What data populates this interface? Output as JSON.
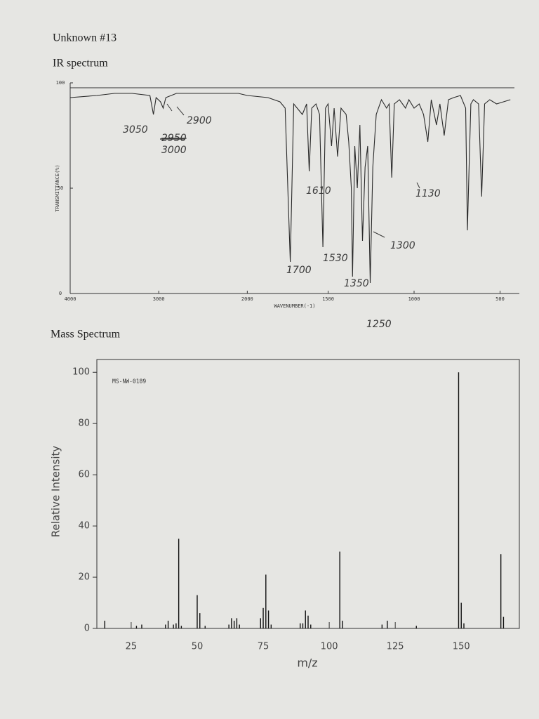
{
  "header": {
    "title": "Unknown #13"
  },
  "chart_data": [
    {
      "type": "line",
      "title": "IR spectrum",
      "x_label": "WAVENUMBER(-1)",
      "y_label": "TRANSMITTANCE(%)",
      "xlim": [
        4000,
        400
      ],
      "ylim": [
        0,
        100
      ],
      "xticks": [
        4000,
        3000,
        2000,
        1500,
        1000,
        500
      ],
      "yticks": [
        0,
        50,
        100
      ],
      "color": "#2a2a2a",
      "annotations": [
        "3050",
        "2900",
        "2950",
        "3000",
        "1610",
        "1130",
        "1300",
        "1530",
        "1700",
        "1350",
        "1250"
      ],
      "x": [
        4000,
        3700,
        3500,
        3300,
        3100,
        3060,
        3030,
        2980,
        2950,
        2920,
        2800,
        2500,
        2100,
        2000,
        1850,
        1780,
        1750,
        1720,
        1700,
        1650,
        1625,
        1610,
        1595,
        1570,
        1550,
        1530,
        1515,
        1500,
        1480,
        1465,
        1445,
        1425,
        1395,
        1380,
        1365,
        1358,
        1345,
        1330,
        1315,
        1300,
        1285,
        1270,
        1255,
        1240,
        1220,
        1190,
        1160,
        1145,
        1130,
        1115,
        1085,
        1050,
        1030,
        1000,
        970,
        945,
        920,
        900,
        870,
        850,
        825,
        800,
        770,
        730,
        700,
        690,
        680,
        670,
        655,
        625,
        607,
        590,
        560,
        520,
        480,
        440
      ],
      "values": [
        93,
        94,
        95,
        95,
        94,
        85,
        93,
        91,
        88,
        93,
        95,
        95,
        95,
        94,
        93,
        91,
        88,
        15,
        90,
        85,
        90,
        58,
        88,
        90,
        85,
        22,
        88,
        90,
        70,
        88,
        65,
        88,
        85,
        72,
        50,
        8,
        70,
        50,
        80,
        25,
        60,
        70,
        5,
        60,
        85,
        92,
        88,
        90,
        55,
        90,
        92,
        88,
        92,
        88,
        90,
        85,
        72,
        92,
        80,
        90,
        75,
        92,
        93,
        94,
        88,
        30,
        60,
        90,
        92,
        90,
        46,
        90,
        92,
        90,
        91,
        92
      ]
    },
    {
      "type": "bar",
      "title": "Mass Spectrum",
      "subtitle": "MS-NW-0189",
      "x_label": "m/z",
      "y_label": "Relative Intensity",
      "xlim": [
        12,
        172
      ],
      "ylim": [
        0,
        105
      ],
      "xticks": [
        25,
        50,
        75,
        100,
        125,
        150
      ],
      "yticks": [
        0,
        20,
        40,
        60,
        80,
        100
      ],
      "color": "#111111",
      "x": [
        15,
        27,
        29,
        38,
        39,
        41,
        42,
        43,
        44,
        50,
        51,
        53,
        62,
        63,
        64,
        65,
        66,
        74,
        75,
        76,
        77,
        78,
        89,
        90,
        91,
        92,
        93,
        104,
        105,
        120,
        122,
        133,
        149,
        150,
        151,
        165,
        166
      ],
      "values": [
        3,
        1,
        1.5,
        1.5,
        3,
        1.5,
        2,
        35,
        1,
        13,
        6,
        1,
        1.5,
        4,
        3,
        4,
        1.5,
        4,
        8,
        21,
        7,
        1.5,
        2,
        2,
        7,
        5,
        1.5,
        30,
        3,
        1.5,
        3,
        1,
        100,
        10,
        2,
        29,
        4.5
      ]
    }
  ]
}
